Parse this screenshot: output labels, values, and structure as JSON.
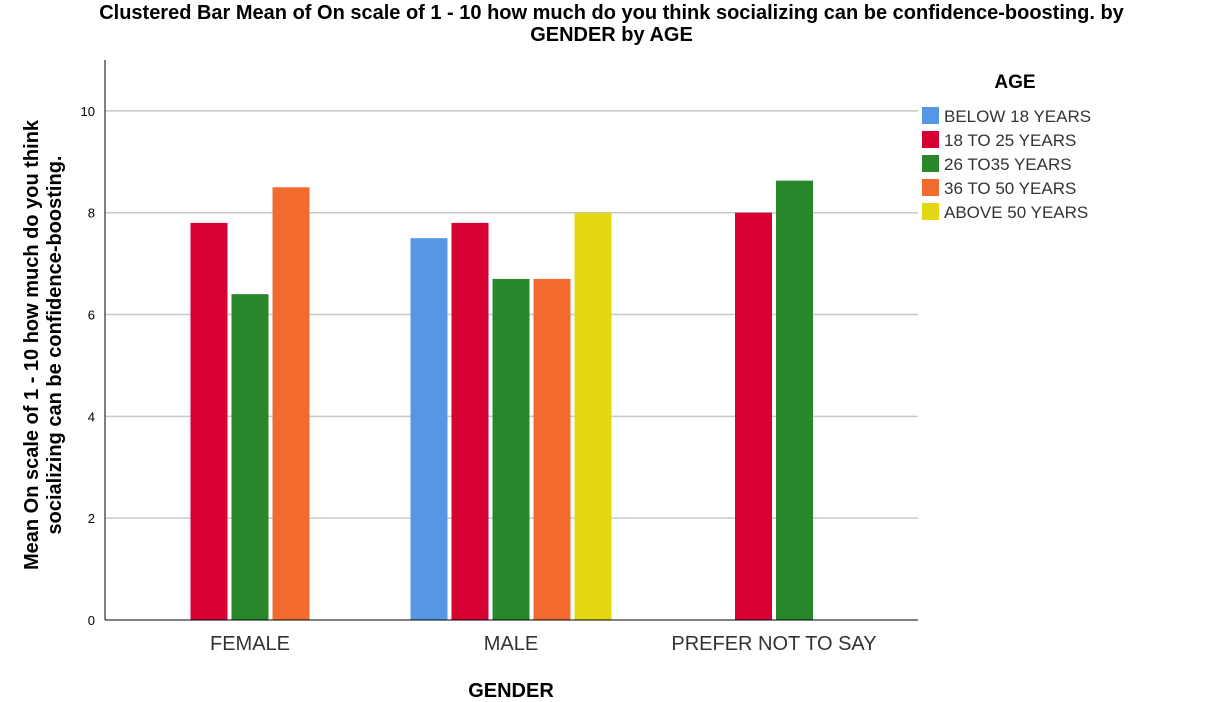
{
  "chart_data": {
    "type": "bar",
    "title_line1": "Clustered Bar Mean of On scale of 1 - 10 how much do you think  socializing  can be confidence-boosting. by",
    "title_line2": "GENDER by AGE",
    "xlabel": "GENDER",
    "ylabel_line1": "Mean On scale of 1 - 10 how much do you think",
    "ylabel_line2": "socializing  can be confidence-boosting.",
    "ylim": [
      0,
      11
    ],
    "yticks": [
      "0",
      "2",
      "4",
      "6",
      "8",
      "10"
    ],
    "grid": true,
    "legend_title": "AGE",
    "legend_position": "right",
    "categories": [
      "FEMALE",
      "MALE",
      "PREFER NOT TO SAY"
    ],
    "series": [
      {
        "name": "BELOW 18 YEARS",
        "color": "#5597E4",
        "values": [
          null,
          7.5,
          null
        ]
      },
      {
        "name": "18 TO 25 YEARS",
        "color": "#D60032",
        "values": [
          7.8,
          7.8,
          8.0
        ]
      },
      {
        "name": "26 TO35 YEARS",
        "color": "#27872A",
        "values": [
          6.4,
          6.7,
          8.63
        ]
      },
      {
        "name": "36 TO 50 YEARS",
        "color": "#F26A2E",
        "values": [
          8.5,
          6.7,
          null
        ]
      },
      {
        "name": "ABOVE 50 YEARS",
        "color": "#E2D712",
        "values": [
          null,
          8.0,
          null
        ]
      }
    ]
  }
}
